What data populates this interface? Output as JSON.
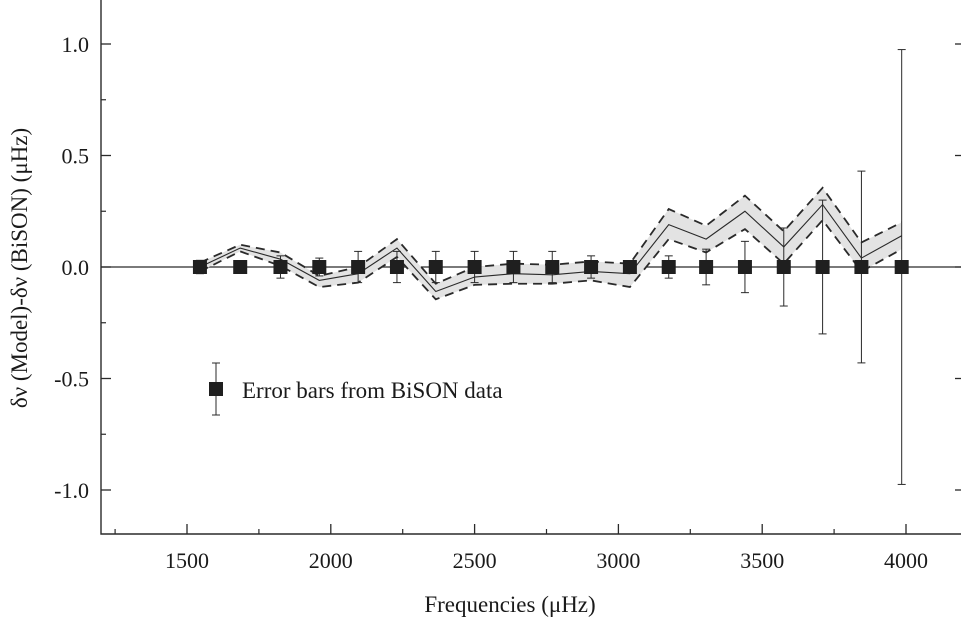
{
  "chart_data": {
    "type": "scatter",
    "xlabel": "Frequencies (μHz)",
    "ylabel": "δν (Model)-δν (BiSON) (μHz)",
    "xlim": [
      1250,
      4200
    ],
    "ylim": [
      -1.2,
      1.2
    ],
    "xticks": [
      1500,
      2000,
      2500,
      3000,
      3500,
      4000
    ],
    "xtick_labels": [
      "1500",
      "2000",
      "2500",
      "3000",
      "3500",
      "4000"
    ],
    "yticks": [
      1.0,
      0.5,
      0.0,
      -0.5,
      -1.0
    ],
    "ytick_labels": [
      "1.0",
      "0.5",
      "0.0",
      "-0.5",
      "-1.0"
    ],
    "grid": false,
    "legend": {
      "position": "lower-left",
      "entries": [
        {
          "label": "Error bars from BiSON data"
        }
      ]
    },
    "series": [
      {
        "kind": "points-with-error-bars",
        "marker": "square",
        "x": [
          1545,
          1685,
          1825,
          1960,
          2095,
          2230,
          2365,
          2500,
          2635,
          2770,
          2905,
          3040,
          3175,
          3305,
          3440,
          3575,
          3710,
          3845,
          3985
        ],
        "y": [
          0,
          0,
          0,
          0,
          0,
          0,
          0,
          0,
          0,
          0,
          0,
          0,
          0,
          0,
          0,
          0,
          0,
          0,
          0
        ],
        "yerr": [
          0.03,
          0.02,
          0.05,
          0.04,
          0.07,
          0.07,
          0.07,
          0.07,
          0.07,
          0.07,
          0.05,
          0.02,
          0.05,
          0.08,
          0.115,
          0.175,
          0.3,
          0.43,
          0.975
        ]
      },
      {
        "kind": "model-band",
        "x": [
          1545,
          1685,
          1825,
          1960,
          2095,
          2230,
          2365,
          2500,
          2635,
          2770,
          2905,
          3040,
          3175,
          3305,
          3440,
          3575,
          3710,
          3845,
          3985
        ],
        "center": [
          0.0,
          0.085,
          0.035,
          -0.06,
          -0.03,
          0.085,
          -0.11,
          -0.045,
          -0.03,
          -0.035,
          -0.02,
          -0.03,
          0.19,
          0.125,
          0.25,
          0.09,
          0.28,
          0.04,
          0.14
        ],
        "upper": [
          0.02,
          0.1,
          0.065,
          -0.04,
          0.0,
          0.125,
          -0.075,
          0.0,
          0.015,
          0.01,
          0.025,
          0.015,
          0.26,
          0.185,
          0.32,
          0.16,
          0.355,
          0.11,
          0.2
        ],
        "lower": [
          -0.02,
          0.07,
          0.005,
          -0.09,
          -0.07,
          0.045,
          -0.145,
          -0.08,
          -0.075,
          -0.075,
          -0.06,
          -0.09,
          0.125,
          0.065,
          0.17,
          0.015,
          0.21,
          -0.02,
          0.08
        ]
      }
    ],
    "colors": {
      "band_fill": "#e3e3e3",
      "line": "#2a2a2a",
      "marker": "#1f1f1f"
    }
  }
}
